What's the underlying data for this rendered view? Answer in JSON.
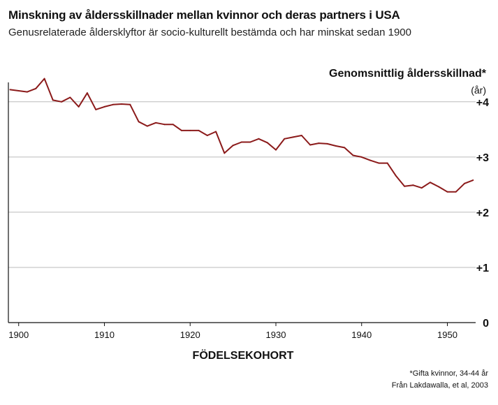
{
  "title": "Minskning av åldersskillnader mellan kvinnor och deras partners i USA",
  "subtitle": "Genusrelaterade åldersklyftor är socio-kulturellt bestämda och har minskat sedan 1900",
  "footnotes": [
    "*Gifta kvinnor, 34-44 år",
    "Från Lakdawalla, et al, 2003"
  ],
  "colors": {
    "line": "#8b1a1a",
    "grid": "#bbbbbb",
    "axis": "#111111"
  },
  "chart_data": {
    "type": "line",
    "title": "Minskning av åldersskillnader mellan kvinnor och deras partners i USA",
    "xlabel": "FÖDELSEKOHORT",
    "ylabel": "Genomsnittlig åldersskillnad*",
    "yunit": "(år)",
    "xlim": [
      1898.8,
      1953.3
    ],
    "ylim": [
      0,
      4.2
    ],
    "xticks": [
      1900,
      1910,
      1920,
      1930,
      1940,
      1950
    ],
    "xtick_labels": [
      "1900",
      "1910",
      "1920",
      "1930",
      "1940",
      "1950"
    ],
    "yticks": [
      0,
      1,
      2,
      3,
      4
    ],
    "ytick_labels": [
      "0",
      "+1",
      "+2",
      "+3",
      "+4"
    ],
    "grid": true,
    "series": [
      {
        "name": "Genomsnittlig åldersskillnad",
        "x": [
          1899,
          1900,
          1901,
          1902,
          1903,
          1904,
          1905,
          1906,
          1907,
          1908,
          1909,
          1910,
          1911,
          1912,
          1913,
          1914,
          1915,
          1916,
          1917,
          1918,
          1919,
          1920,
          1921,
          1922,
          1923,
          1924,
          1925,
          1926,
          1927,
          1928,
          1929,
          1930,
          1931,
          1932,
          1933,
          1934,
          1935,
          1936,
          1937,
          1938,
          1939,
          1940,
          1941,
          1942,
          1943,
          1944,
          1945,
          1946,
          1947,
          1948,
          1949,
          1950,
          1951,
          1952,
          1953
        ],
        "values": [
          4.22,
          4.2,
          4.18,
          4.24,
          4.42,
          4.03,
          4.0,
          4.08,
          3.91,
          4.16,
          3.86,
          3.91,
          3.95,
          3.96,
          3.95,
          3.64,
          3.56,
          3.62,
          3.59,
          3.59,
          3.48,
          3.48,
          3.48,
          3.39,
          3.46,
          3.07,
          3.21,
          3.27,
          3.27,
          3.33,
          3.26,
          3.13,
          3.33,
          3.36,
          3.39,
          3.22,
          3.25,
          3.24,
          3.2,
          3.17,
          3.03,
          3.0,
          2.94,
          2.89,
          2.89,
          2.66,
          2.47,
          2.49,
          2.44,
          2.54,
          2.46,
          2.37,
          2.37,
          2.52,
          2.58
        ]
      }
    ]
  }
}
